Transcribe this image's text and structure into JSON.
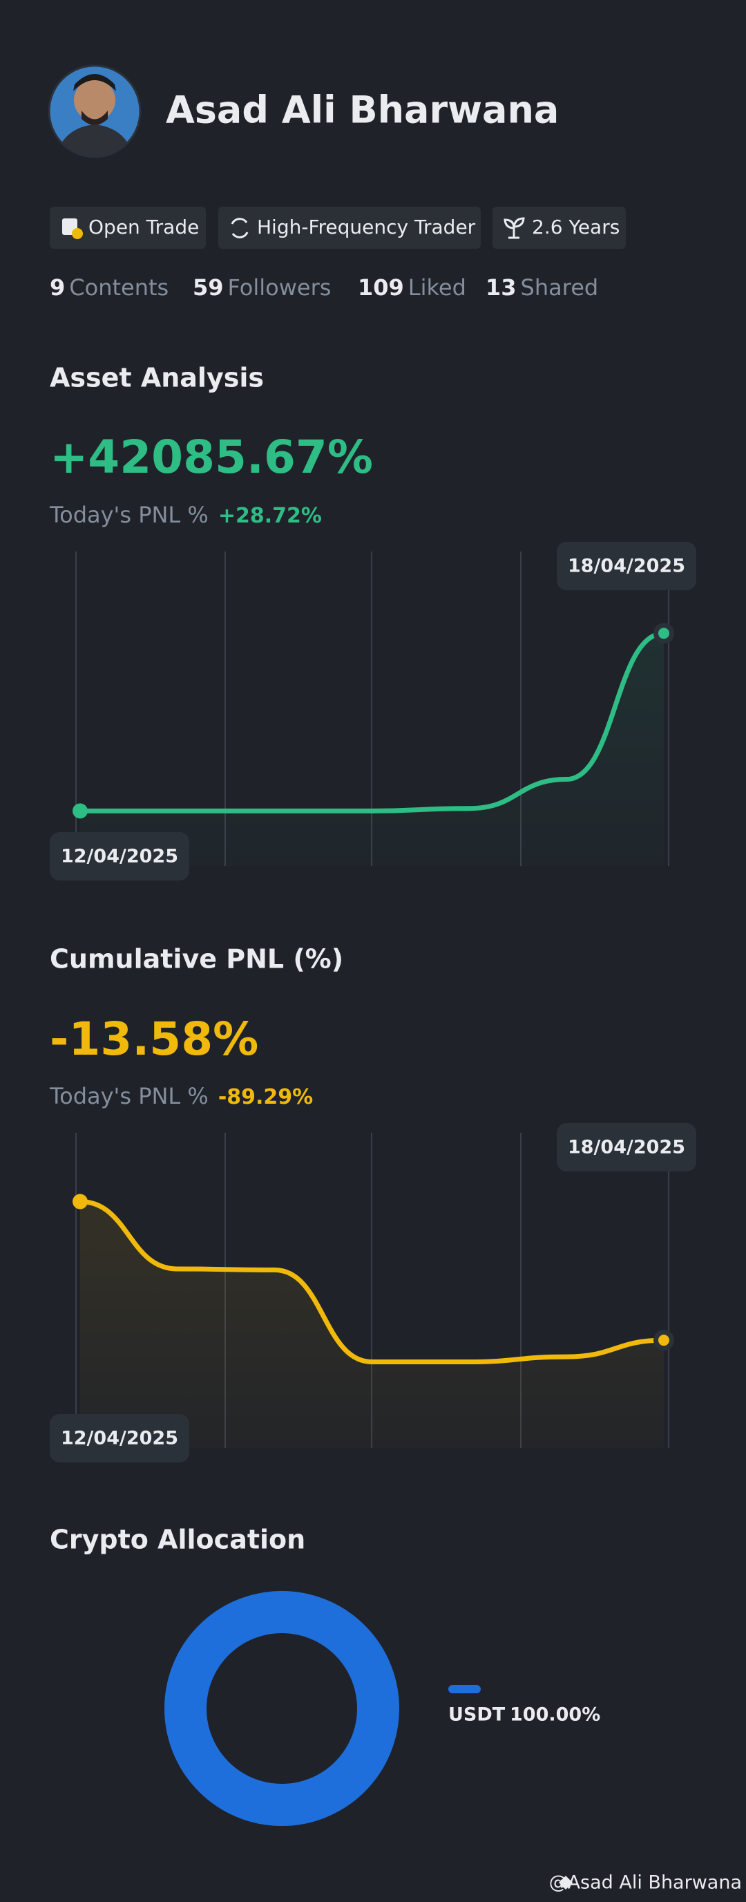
{
  "profile": {
    "name": "Asad Ali Bharwana",
    "badges": [
      "Open Trade",
      "High-Frequency Trader",
      "2.6 Years"
    ],
    "stats": [
      {
        "value": "9",
        "label": "Contents"
      },
      {
        "value": "59",
        "label": "Followers"
      },
      {
        "value": "109",
        "label": "Liked"
      },
      {
        "value": "13",
        "label": "Shared"
      }
    ]
  },
  "chart_data": [
    {
      "type": "line",
      "title": "Asset Analysis",
      "headline": "+42085.67%",
      "today_label": "Today's PNL %",
      "today_value": "+28.72%",
      "categories": [
        "12/04/2025",
        null,
        null,
        null,
        null,
        null,
        "18/04/2025"
      ],
      "series": [
        {
          "name": "Asset Analysis",
          "color": "#2ebd85",
          "values": [
            0,
            0,
            0,
            0,
            600,
            7500,
            42085.67
          ]
        }
      ],
      "ylim": [
        -6000,
        50000
      ]
    },
    {
      "type": "line",
      "title": "Cumulative PNL (%)",
      "headline": "-13.58%",
      "today_label": "Today's PNL %",
      "today_value": "-89.29%",
      "categories": [
        "12/04/2025",
        null,
        null,
        null,
        null,
        null,
        "18/04/2025"
      ],
      "series": [
        {
          "name": "Cumulative PNL (%)",
          "color": "#f0b90b",
          "values": [
            0,
            -6.6,
            -6.7,
            -15.7,
            -15.7,
            -15.2,
            -13.58
          ]
        }
      ],
      "ylim": [
        -20,
        2
      ]
    },
    {
      "type": "pie",
      "title": "Crypto Allocation",
      "categories": [
        "USDT"
      ],
      "values": [
        100
      ],
      "value_labels": [
        "100.00%"
      ],
      "colors": [
        "#1e6fdb"
      ]
    }
  ],
  "watermark": "@Asad Ali Bharwana"
}
